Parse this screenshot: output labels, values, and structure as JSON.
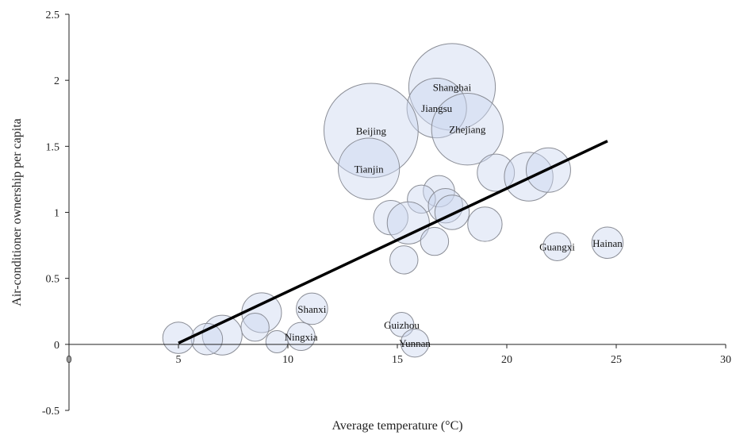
{
  "chart_data": {
    "type": "scatter",
    "subtype": "bubble",
    "title": "",
    "xlabel": "Average temperature (°C)",
    "ylabel": "Air-conditioner ownership per capita",
    "xlim": [
      0,
      30
    ],
    "ylim": [
      -0.5,
      2.5
    ],
    "x_ticks": [
      "0",
      "5",
      "10",
      "15",
      "20",
      "25",
      "30"
    ],
    "y_ticks": [
      "-0.5",
      "0",
      "0.5",
      "1",
      "1.5",
      "2",
      "2.5"
    ],
    "grid": false,
    "legend": "none",
    "colors": {
      "bubble_fill": "#dbe3f5",
      "bubble_stroke": "#8a8d96",
      "trend": "#000000"
    },
    "trendline": {
      "x": [
        5,
        24.6
      ],
      "y": [
        0.01,
        1.54
      ]
    },
    "points": [
      {
        "label": "Shanghai",
        "x": 17.5,
        "y": 1.95,
        "size": 3.8
      },
      {
        "label": "Jiangsu",
        "x": 16.8,
        "y": 1.79,
        "size": 1.8
      },
      {
        "label": "Zhejiang",
        "x": 18.2,
        "y": 1.63,
        "size": 2.6
      },
      {
        "label": "Beijing",
        "x": 13.8,
        "y": 1.62,
        "size": 4.5
      },
      {
        "label": "Tianjin",
        "x": 13.7,
        "y": 1.33,
        "size": 1.9
      },
      {
        "label": "",
        "x": 19.5,
        "y": 1.3,
        "size": 0.7
      },
      {
        "label": "",
        "x": 21.0,
        "y": 1.27,
        "size": 1.2
      },
      {
        "label": "",
        "x": 21.9,
        "y": 1.32,
        "size": 1.0
      },
      {
        "label": "",
        "x": 16.9,
        "y": 1.16,
        "size": 0.5
      },
      {
        "label": "",
        "x": 16.1,
        "y": 1.1,
        "size": 0.4
      },
      {
        "label": "",
        "x": 17.2,
        "y": 1.05,
        "size": 0.6
      },
      {
        "label": "",
        "x": 17.5,
        "y": 1.0,
        "size": 0.6
      },
      {
        "label": "",
        "x": 14.7,
        "y": 0.96,
        "size": 0.6
      },
      {
        "label": "",
        "x": 15.5,
        "y": 0.92,
        "size": 0.9
      },
      {
        "label": "",
        "x": 19.0,
        "y": 0.91,
        "size": 0.6
      },
      {
        "label": "",
        "x": 16.7,
        "y": 0.78,
        "size": 0.4
      },
      {
        "label": "",
        "x": 15.3,
        "y": 0.64,
        "size": 0.4
      },
      {
        "label": "Guangxi",
        "x": 22.3,
        "y": 0.74,
        "size": 0.4
      },
      {
        "label": "Hainan",
        "x": 24.6,
        "y": 0.77,
        "size": 0.5
      },
      {
        "label": "",
        "x": 8.8,
        "y": 0.24,
        "size": 0.8
      },
      {
        "label": "Shanxi",
        "x": 11.1,
        "y": 0.27,
        "size": 0.5
      },
      {
        "label": "",
        "x": 8.5,
        "y": 0.13,
        "size": 0.4
      },
      {
        "label": "",
        "x": 7.0,
        "y": 0.07,
        "size": 0.8
      },
      {
        "label": "",
        "x": 6.3,
        "y": 0.04,
        "size": 0.5
      },
      {
        "label": "",
        "x": 5.0,
        "y": 0.05,
        "size": 0.5
      },
      {
        "label": "",
        "x": 9.5,
        "y": 0.02,
        "size": 0.25
      },
      {
        "label": "Ningxia",
        "x": 10.6,
        "y": 0.06,
        "size": 0.4
      },
      {
        "label": "Guizhou",
        "x": 15.2,
        "y": 0.15,
        "size": 0.3
      },
      {
        "label": "Yunnan",
        "x": 15.8,
        "y": 0.01,
        "size": 0.4
      }
    ]
  }
}
